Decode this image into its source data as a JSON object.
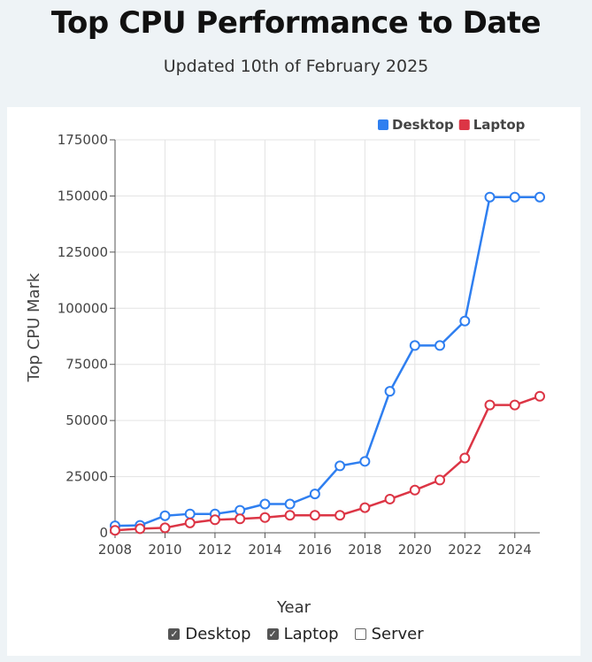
{
  "page": {
    "title": "Top CPU Performance to Date",
    "subtitle": "Updated 10th of February 2025"
  },
  "colors": {
    "desktop": "#2f7ff0",
    "laptop": "#dc3545",
    "grid": "#e3e3e3",
    "axis": "#555555"
  },
  "chart_data": {
    "type": "line",
    "title": "Top CPU Performance to Date",
    "xlabel": "Year",
    "ylabel": "Top CPU Mark",
    "xlim": [
      2008,
      2025
    ],
    "ylim": [
      0,
      175000
    ],
    "xticks": [
      2008,
      2010,
      2012,
      2014,
      2016,
      2018,
      2020,
      2022,
      2024
    ],
    "yticks": [
      0,
      25000,
      50000,
      75000,
      100000,
      125000,
      150000,
      175000
    ],
    "grid": true,
    "legend_position": "top-right",
    "x": [
      2008,
      2009,
      2010,
      2011,
      2012,
      2013,
      2014,
      2015,
      2016,
      2017,
      2018,
      2019,
      2020,
      2021,
      2022,
      2023,
      2024,
      2025
    ],
    "series": [
      {
        "name": "Desktop",
        "color_key": "desktop",
        "values": [
          3100,
          3300,
          7600,
          8400,
          8400,
          10000,
          12800,
          12800,
          17300,
          29800,
          31800,
          63000,
          83400,
          83400,
          94300,
          149500,
          149500,
          149500
        ]
      },
      {
        "name": "Laptop",
        "color_key": "laptop",
        "values": [
          1100,
          1800,
          2200,
          4400,
          5800,
          6200,
          6800,
          7800,
          7800,
          7800,
          11200,
          15000,
          19000,
          23500,
          33300,
          56900,
          56900,
          60800
        ]
      }
    ]
  },
  "controls": {
    "options": [
      {
        "label": "Desktop",
        "checked": true
      },
      {
        "label": "Laptop",
        "checked": true
      },
      {
        "label": "Server",
        "checked": false
      }
    ]
  }
}
